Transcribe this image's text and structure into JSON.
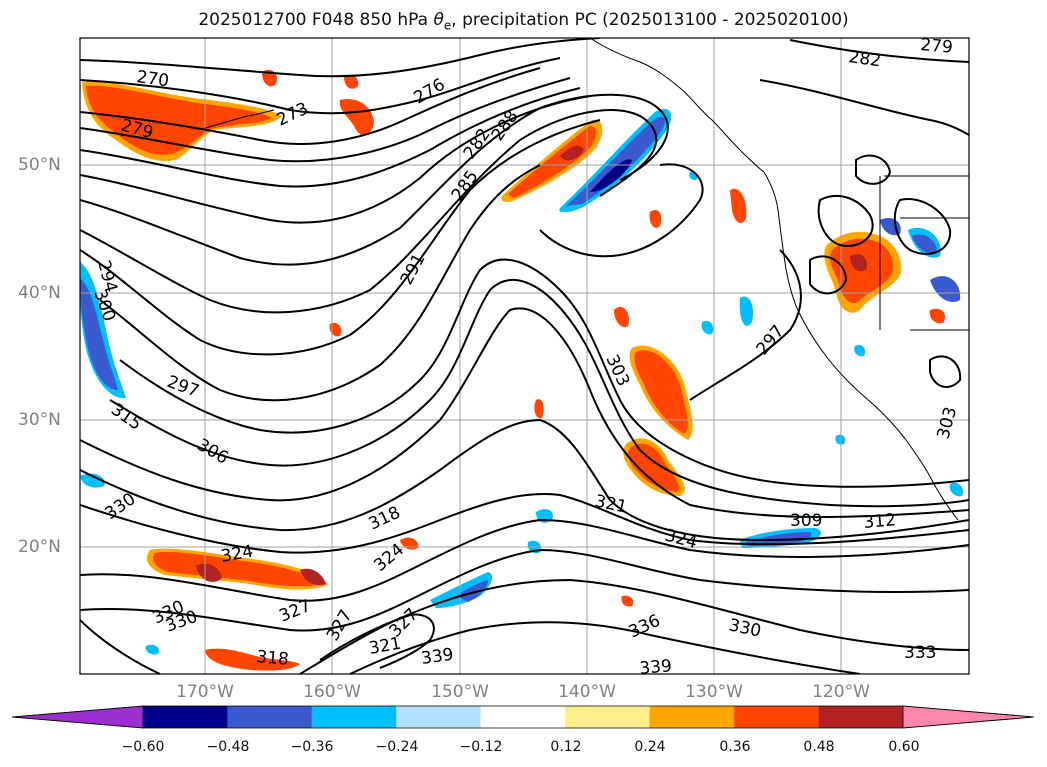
{
  "title": {
    "prefix": "2025012700 F048 850 hPa ",
    "theta": "θ",
    "theta_sub": "e",
    "suffix": ", precipitation PC (2025013100 - 2025020100)"
  },
  "lat_labels": [
    "50°N",
    "40°N",
    "30°N",
    "20°N"
  ],
  "lon_labels": [
    "170°W",
    "160°W",
    "150°W",
    "140°W",
    "130°W",
    "120°W"
  ],
  "contour_labels": [
    "270",
    "273",
    "276",
    "279",
    "279",
    "282",
    "282",
    "285",
    "288",
    "291",
    "294",
    "297",
    "297",
    "300",
    "303",
    "303",
    "306",
    "309",
    "312",
    "315",
    "318",
    "318",
    "321",
    "321",
    "324",
    "324",
    "324",
    "327",
    "327",
    "327",
    "330",
    "330",
    "330",
    "330",
    "333",
    "336",
    "339",
    "339"
  ],
  "colorbar": {
    "ticks": [
      "−0.60",
      "−0.48",
      "−0.36",
      "−0.24",
      "−0.12",
      "0.12",
      "0.24",
      "0.36",
      "0.48",
      "0.60"
    ],
    "colors": [
      "#9b30d0",
      "#00008b",
      "#3a5bd0",
      "#00bfff",
      "#b0e2ff",
      "#ffffff",
      "#ffee8a",
      "#ffa500",
      "#ff4500",
      "#b22222",
      "#ff88aa"
    ],
    "extend": "both"
  },
  "colors": {
    "contour": "#000000",
    "grid": "#a0a0a0",
    "positive_strong": "#ff4500",
    "positive_weak": "#ffa500",
    "negative_strong": "#3a5bd0",
    "negative_weak": "#00bfff"
  }
}
